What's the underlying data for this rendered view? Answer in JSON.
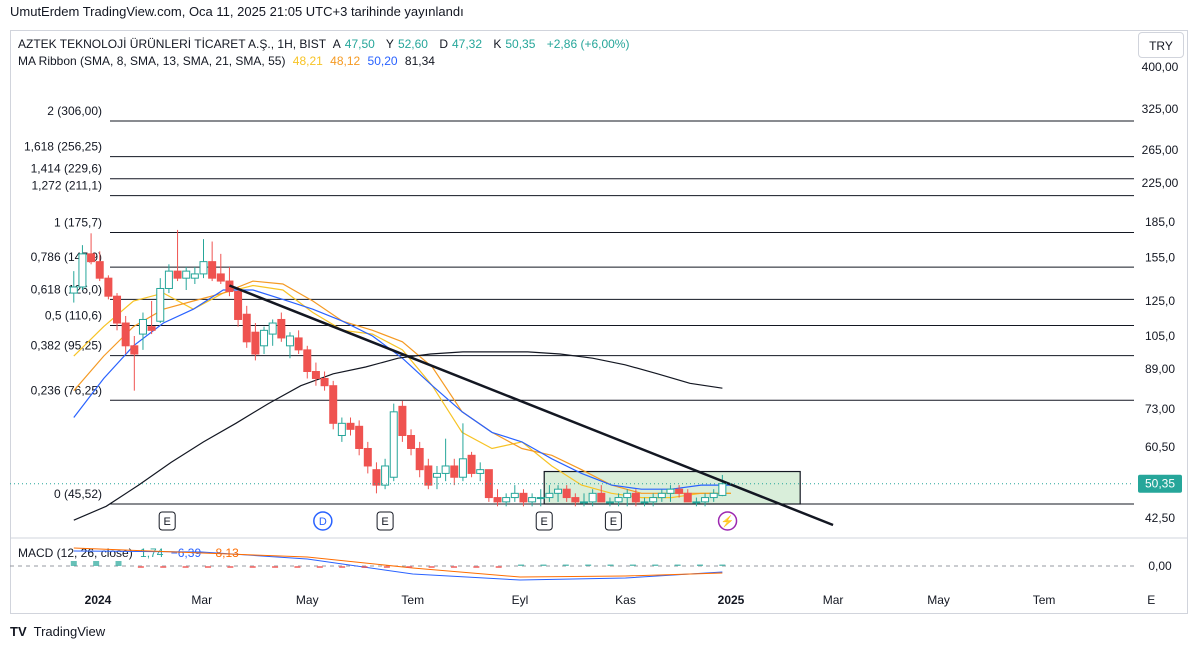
{
  "header": {
    "published": "UmutErdem TradingView.com, Oca 11, 2025 21:05 UTC+3 tarihinde yayınlandı"
  },
  "legend": {
    "symbol": "AZTEK TEKNOLOJİ ÜRÜNLERİ TİCARET A.Ş., 1H, BIST",
    "a_label": "A",
    "a_value": "47,50",
    "y_label": "Y",
    "y_value": "52,60",
    "d_label": "D",
    "d_value": "47,32",
    "k_label": "K",
    "k_value": "50,35",
    "change": "+2,86 (+6,00%)",
    "ribbon_label": "MA Ribbon (SMA, 8, SMA, 13, SMA, 21, SMA, 55)",
    "ribbon_values": [
      "48,21",
      "48,12",
      "50,20",
      "81,34"
    ],
    "ribbon_colors": [
      "#f7c325",
      "#f59a23",
      "#2962ff",
      "#131722"
    ],
    "macd_label": "MACD (12, 26, close)",
    "macd_values": [
      "1,74",
      "−6,39",
      "−8,13"
    ],
    "macd_colors": [
      "#26a69a",
      "#2962ff",
      "#ff6d00"
    ]
  },
  "currency": "TRY",
  "footer": {
    "brand": "TradingView",
    "logo": "tradingview-logo-icon"
  },
  "chart_data": {
    "type": "candlestick",
    "y_axis": {
      "scale": "log",
      "ticks": [
        "400,00",
        "325,00",
        "265,00",
        "225,00",
        "185,0",
        "155,0",
        "125,0",
        "105,0",
        "89,00",
        "73,00",
        "60,50",
        "50,35",
        "42,50"
      ],
      "tick_values": [
        400,
        325,
        265,
        225,
        185,
        155,
        125,
        105,
        89,
        73,
        60.5,
        50.35,
        42.5
      ],
      "current_price": 50.35,
      "current_label": "50,35"
    },
    "macd_axis": {
      "ticks": [
        "0,00"
      ]
    },
    "x_axis": {
      "ticks": [
        "2024",
        "Mar",
        "May",
        "Tem",
        "Eyl",
        "Kas",
        "2025",
        "Mar",
        "May",
        "Tem",
        "E"
      ],
      "bold": [
        "2024",
        "2025"
      ]
    },
    "fibonacci": [
      {
        "label": "2 (306,00)",
        "price": 306.0
      },
      {
        "label": "1,618 (256,25)",
        "price": 256.25
      },
      {
        "label": "1,414 (229,6)",
        "price": 229.6
      },
      {
        "label": "1,272 (211,1)",
        "price": 211.1
      },
      {
        "label": "1 (175,7)",
        "price": 175.7
      },
      {
        "label": "0,786 (147,9)",
        "price": 147.9
      },
      {
        "label": "0,618 (126,0)",
        "price": 126.0
      },
      {
        "label": "0,5 (110,6)",
        "price": 110.6
      },
      {
        "label": "0,382 (95,25)",
        "price": 95.25
      },
      {
        "label": "0,236 (76,25)",
        "price": 76.25
      },
      {
        "label": "0 (45,52)",
        "price": 45.52
      }
    ],
    "events": [
      {
        "kind": "earnings",
        "label": "E",
        "date": "2024-02-10"
      },
      {
        "kind": "dividend",
        "label": "D",
        "date": "2024-05-10"
      },
      {
        "kind": "earnings",
        "label": "E",
        "date": "2024-06-15"
      },
      {
        "kind": "earnings",
        "label": "E",
        "date": "2024-09-15"
      },
      {
        "kind": "earnings",
        "label": "E",
        "date": "2024-10-25"
      },
      {
        "kind": "split",
        "label": "⚡",
        "date": "2024-12-30"
      }
    ],
    "candles": [
      {
        "t": "2023-12-18",
        "o": 130,
        "h": 145,
        "l": 124,
        "c": 134
      },
      {
        "t": "2023-12-23",
        "o": 134,
        "h": 165,
        "l": 132,
        "c": 158
      },
      {
        "t": "2023-12-28",
        "o": 158,
        "h": 175,
        "l": 150,
        "c": 152
      },
      {
        "t": "2024-01-02",
        "o": 152,
        "h": 160,
        "l": 138,
        "c": 140
      },
      {
        "t": "2024-01-07",
        "o": 140,
        "h": 142,
        "l": 126,
        "c": 128
      },
      {
        "t": "2024-01-12",
        "o": 128,
        "h": 130,
        "l": 108,
        "c": 112
      },
      {
        "t": "2024-01-17",
        "o": 112,
        "h": 116,
        "l": 96,
        "c": 100
      },
      {
        "t": "2024-01-22",
        "o": 100,
        "h": 105,
        "l": 80,
        "c": 96
      },
      {
        "t": "2024-01-27",
        "o": 106,
        "h": 118,
        "l": 98,
        "c": 114
      },
      {
        "t": "2024-02-01",
        "o": 110,
        "h": 125,
        "l": 106,
        "c": 108
      },
      {
        "t": "2024-02-06",
        "o": 113,
        "h": 140,
        "l": 112,
        "c": 133
      },
      {
        "t": "2024-02-11",
        "o": 133,
        "h": 150,
        "l": 130,
        "c": 145
      },
      {
        "t": "2024-02-16",
        "o": 145,
        "h": 178,
        "l": 138,
        "c": 140
      },
      {
        "t": "2024-02-21",
        "o": 140,
        "h": 148,
        "l": 132,
        "c": 145
      },
      {
        "t": "2024-02-26",
        "o": 140,
        "h": 148,
        "l": 136,
        "c": 143
      },
      {
        "t": "2024-03-02",
        "o": 143,
        "h": 170,
        "l": 140,
        "c": 152
      },
      {
        "t": "2024-03-07",
        "o": 152,
        "h": 168,
        "l": 138,
        "c": 140
      },
      {
        "t": "2024-03-12",
        "o": 143,
        "h": 158,
        "l": 136,
        "c": 138
      },
      {
        "t": "2024-03-17",
        "o": 138,
        "h": 148,
        "l": 128,
        "c": 131
      },
      {
        "t": "2024-03-22",
        "o": 131,
        "h": 134,
        "l": 110,
        "c": 114
      },
      {
        "t": "2024-03-27",
        "o": 117,
        "h": 122,
        "l": 99,
        "c": 102
      },
      {
        "t": "2024-04-01",
        "o": 107,
        "h": 112,
        "l": 93,
        "c": 96
      },
      {
        "t": "2024-04-06",
        "o": 100,
        "h": 110,
        "l": 96,
        "c": 108
      },
      {
        "t": "2024-04-11",
        "o": 106,
        "h": 114,
        "l": 100,
        "c": 112
      },
      {
        "t": "2024-04-16",
        "o": 114,
        "h": 118,
        "l": 102,
        "c": 104
      },
      {
        "t": "2024-04-21",
        "o": 100,
        "h": 107,
        "l": 94,
        "c": 105
      },
      {
        "t": "2024-04-26",
        "o": 104,
        "h": 108,
        "l": 96,
        "c": 98
      },
      {
        "t": "2024-05-01",
        "o": 98,
        "h": 100,
        "l": 85,
        "c": 88
      },
      {
        "t": "2024-05-06",
        "o": 88,
        "h": 92,
        "l": 82,
        "c": 85
      },
      {
        "t": "2024-05-11",
        "o": 85,
        "h": 88,
        "l": 80,
        "c": 82
      },
      {
        "t": "2024-05-16",
        "o": 82,
        "h": 84,
        "l": 66,
        "c": 68
      },
      {
        "t": "2024-05-21",
        "o": 64,
        "h": 70,
        "l": 62,
        "c": 68
      },
      {
        "t": "2024-05-26",
        "o": 68,
        "h": 70,
        "l": 64,
        "c": 66
      },
      {
        "t": "2024-05-31",
        "o": 67,
        "h": 69,
        "l": 58,
        "c": 60
      },
      {
        "t": "2024-06-05",
        "o": 60,
        "h": 62,
        "l": 53,
        "c": 55
      },
      {
        "t": "2024-06-10",
        "o": 54,
        "h": 56,
        "l": 48,
        "c": 50
      },
      {
        "t": "2024-06-15",
        "o": 50,
        "h": 57,
        "l": 49,
        "c": 55
      },
      {
        "t": "2024-06-20",
        "o": 52,
        "h": 75,
        "l": 51,
        "c": 72
      },
      {
        "t": "2024-06-25",
        "o": 74,
        "h": 76,
        "l": 62,
        "c": 64
      },
      {
        "t": "2024-06-30",
        "o": 64,
        "h": 66,
        "l": 58,
        "c": 60
      },
      {
        "t": "2024-07-05",
        "o": 60,
        "h": 62,
        "l": 52,
        "c": 54
      },
      {
        "t": "2024-07-10",
        "o": 55,
        "h": 57,
        "l": 49,
        "c": 50
      },
      {
        "t": "2024-07-15",
        "o": 52,
        "h": 55,
        "l": 49,
        "c": 53
      },
      {
        "t": "2024-07-20",
        "o": 53,
        "h": 63,
        "l": 51,
        "c": 55
      },
      {
        "t": "2024-07-25",
        "o": 55,
        "h": 57,
        "l": 50,
        "c": 52
      },
      {
        "t": "2024-07-30",
        "o": 52,
        "h": 68,
        "l": 51,
        "c": 57
      },
      {
        "t": "2024-08-04",
        "o": 58,
        "h": 59,
        "l": 52,
        "c": 53
      },
      {
        "t": "2024-08-09",
        "o": 53,
        "h": 56,
        "l": 51,
        "c": 54
      },
      {
        "t": "2024-08-14",
        "o": 54,
        "h": 54,
        "l": 46,
        "c": 47
      },
      {
        "t": "2024-08-19",
        "o": 47,
        "h": 49,
        "l": 45,
        "c": 46
      },
      {
        "t": "2024-08-24",
        "o": 46,
        "h": 48,
        "l": 45,
        "c": 47
      },
      {
        "t": "2024-08-29",
        "o": 47,
        "h": 50,
        "l": 46,
        "c": 48
      },
      {
        "t": "2024-09-03",
        "o": 48,
        "h": 49,
        "l": 45,
        "c": 46
      },
      {
        "t": "2024-09-08",
        "o": 46,
        "h": 48,
        "l": 45,
        "c": 47
      },
      {
        "t": "2024-09-13",
        "o": 47,
        "h": 49,
        "l": 45,
        "c": 47
      },
      {
        "t": "2024-09-18",
        "o": 47,
        "h": 50,
        "l": 46,
        "c": 48
      },
      {
        "t": "2024-09-23",
        "o": 48,
        "h": 50,
        "l": 46,
        "c": 49
      },
      {
        "t": "2024-09-28",
        "o": 49,
        "h": 50,
        "l": 46,
        "c": 47
      },
      {
        "t": "2024-10-03",
        "o": 47,
        "h": 48,
        "l": 45,
        "c": 46
      },
      {
        "t": "2024-10-08",
        "o": 46,
        "h": 48,
        "l": 45,
        "c": 46
      },
      {
        "t": "2024-10-13",
        "o": 46,
        "h": 49,
        "l": 45,
        "c": 48
      },
      {
        "t": "2024-10-18",
        "o": 48,
        "h": 50,
        "l": 46,
        "c": 46
      },
      {
        "t": "2024-10-23",
        "o": 46,
        "h": 47,
        "l": 45,
        "c": 46
      },
      {
        "t": "2024-10-28",
        "o": 46,
        "h": 48,
        "l": 45,
        "c": 47
      },
      {
        "t": "2024-11-02",
        "o": 47,
        "h": 49,
        "l": 45,
        "c": 48
      },
      {
        "t": "2024-11-07",
        "o": 48,
        "h": 49,
        "l": 45,
        "c": 46
      },
      {
        "t": "2024-11-12",
        "o": 46,
        "h": 47,
        "l": 45,
        "c": 46
      },
      {
        "t": "2024-11-17",
        "o": 46,
        "h": 48,
        "l": 45,
        "c": 47
      },
      {
        "t": "2024-11-22",
        "o": 47,
        "h": 49,
        "l": 46,
        "c": 48
      },
      {
        "t": "2024-11-27",
        "o": 48,
        "h": 50,
        "l": 46,
        "c": 49
      },
      {
        "t": "2024-12-02",
        "o": 49,
        "h": 50,
        "l": 47,
        "c": 48
      },
      {
        "t": "2024-12-07",
        "o": 48,
        "h": 49,
        "l": 46,
        "c": 46
      },
      {
        "t": "2024-12-12",
        "o": 46,
        "h": 47,
        "l": 45,
        "c": 46
      },
      {
        "t": "2024-12-17",
        "o": 46,
        "h": 48,
        "l": 45,
        "c": 47
      },
      {
        "t": "2024-12-22",
        "o": 47,
        "h": 49,
        "l": 46,
        "c": 48
      },
      {
        "t": "2024-12-27",
        "o": 47.5,
        "h": 52.6,
        "l": 47.32,
        "c": 50.35
      }
    ],
    "ma": {
      "sma8": [
        [
          0,
          95
        ],
        [
          1,
          110
        ],
        [
          2,
          125
        ],
        [
          3,
          130
        ],
        [
          4,
          120
        ],
        [
          5,
          130
        ],
        [
          6,
          135
        ],
        [
          7,
          132
        ],
        [
          8,
          118
        ],
        [
          9,
          108
        ],
        [
          10,
          106
        ],
        [
          11,
          98
        ],
        [
          12,
          82
        ],
        [
          13,
          65
        ],
        [
          14,
          60
        ],
        [
          15,
          62
        ],
        [
          16,
          55
        ],
        [
          17,
          50
        ],
        [
          18,
          48
        ],
        [
          19,
          47
        ],
        [
          20,
          47
        ],
        [
          21,
          48
        ],
        [
          22,
          48
        ]
      ],
      "sma13": [
        [
          0,
          80
        ],
        [
          1,
          95
        ],
        [
          2,
          110
        ],
        [
          3,
          120
        ],
        [
          4,
          125
        ],
        [
          5,
          130
        ],
        [
          6,
          138
        ],
        [
          7,
          136
        ],
        [
          8,
          125
        ],
        [
          9,
          113
        ],
        [
          10,
          108
        ],
        [
          11,
          102
        ],
        [
          12,
          90
        ],
        [
          13,
          72
        ],
        [
          14,
          65
        ],
        [
          15,
          60
        ],
        [
          16,
          58
        ],
        [
          17,
          54
        ],
        [
          18,
          50
        ],
        [
          19,
          48
        ],
        [
          20,
          48
        ],
        [
          21,
          48
        ],
        [
          22,
          48
        ]
      ],
      "sma21": [
        [
          0,
          70
        ],
        [
          1,
          85
        ],
        [
          2,
          100
        ],
        [
          3,
          112
        ],
        [
          4,
          120
        ],
        [
          5,
          132
        ],
        [
          6,
          132
        ],
        [
          7,
          126
        ],
        [
          8,
          120
        ],
        [
          9,
          113
        ],
        [
          10,
          105
        ],
        [
          11,
          94
        ],
        [
          12,
          82
        ],
        [
          13,
          72
        ],
        [
          14,
          65
        ],
        [
          15,
          62
        ],
        [
          16,
          57
        ],
        [
          17,
          53
        ],
        [
          18,
          50
        ],
        [
          19,
          49
        ],
        [
          20,
          49
        ],
        [
          21,
          50
        ],
        [
          22,
          50
        ]
      ],
      "sma55": [
        [
          0,
          42
        ],
        [
          1,
          45
        ],
        [
          2,
          50
        ],
        [
          3,
          56
        ],
        [
          4,
          62
        ],
        [
          5,
          68
        ],
        [
          6,
          75
        ],
        [
          7,
          82
        ],
        [
          8,
          87
        ],
        [
          9,
          90
        ],
        [
          10,
          94
        ],
        [
          11,
          96
        ],
        [
          12,
          97
        ],
        [
          13,
          97
        ],
        [
          14,
          97
        ],
        [
          15,
          96
        ],
        [
          16,
          94
        ],
        [
          17,
          91
        ],
        [
          18,
          87
        ],
        [
          19,
          83
        ],
        [
          20,
          81
        ]
      ]
    },
    "macd": {
      "macd": 1.74,
      "signal": -6.39,
      "histogram": -8.13
    },
    "trendline": {
      "from": {
        "t": "2024-03-17",
        "price": 135
      },
      "to": {
        "t": "2025-03-01",
        "price": 41
      }
    },
    "range_box": {
      "from_t": "2024-09-15",
      "to_t": "2025-02-10",
      "top": 53.5,
      "bottom": 45.52
    }
  }
}
